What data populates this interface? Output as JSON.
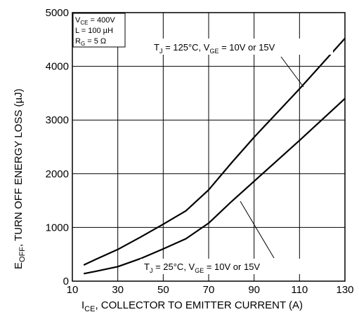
{
  "chart_data": {
    "type": "line",
    "xlabel_main": "I",
    "xlabel_sub": "CE",
    "xlabel_rest": ", COLLECTOR TO EMITTER CURRENT (A)",
    "ylabel_main": "E",
    "ylabel_sub": "OFF",
    "ylabel_rest": ", TURN OFF ENERGY LOSS (µJ)",
    "xlim": [
      10,
      130
    ],
    "ylim": [
      0,
      5000
    ],
    "x_ticks": [
      "10",
      "30",
      "50",
      "70",
      "90",
      "110",
      "130"
    ],
    "y_ticks": [
      "0",
      "1000",
      "2000",
      "3000",
      "4000",
      "5000"
    ],
    "grid": true,
    "conditions": {
      "vce": {
        "main": "V",
        "sub": "CE",
        "rest": " = 400V"
      },
      "l": "L = 100 µH",
      "rg": {
        "main": "R",
        "sub": "G",
        "rest": " = 5 Ω"
      }
    },
    "series": [
      {
        "label": {
          "t_main": "T",
          "t_sub": "J",
          "t_rest": " = 125°C, V",
          "v_sub": "GE",
          "v_rest": " = 10V or 15V"
        },
        "x": [
          15,
          20,
          30,
          40,
          50,
          60,
          70,
          80,
          90,
          100,
          110,
          120,
          130
        ],
        "y": [
          300,
          400,
          590,
          820,
          1060,
          1310,
          1700,
          2200,
          2680,
          3130,
          3580,
          4050,
          4520
        ]
      },
      {
        "label": {
          "t_main": "T",
          "t_sub": "J",
          "t_rest": " = 25°C, V",
          "v_sub": "GE",
          "v_rest": " = 10V or 15V"
        },
        "x": [
          15,
          20,
          30,
          40,
          50,
          60,
          70,
          80,
          90,
          100,
          110,
          120,
          130
        ],
        "y": [
          140,
          180,
          270,
          420,
          600,
          790,
          1080,
          1480,
          1860,
          2240,
          2620,
          3010,
          3400
        ]
      }
    ]
  }
}
